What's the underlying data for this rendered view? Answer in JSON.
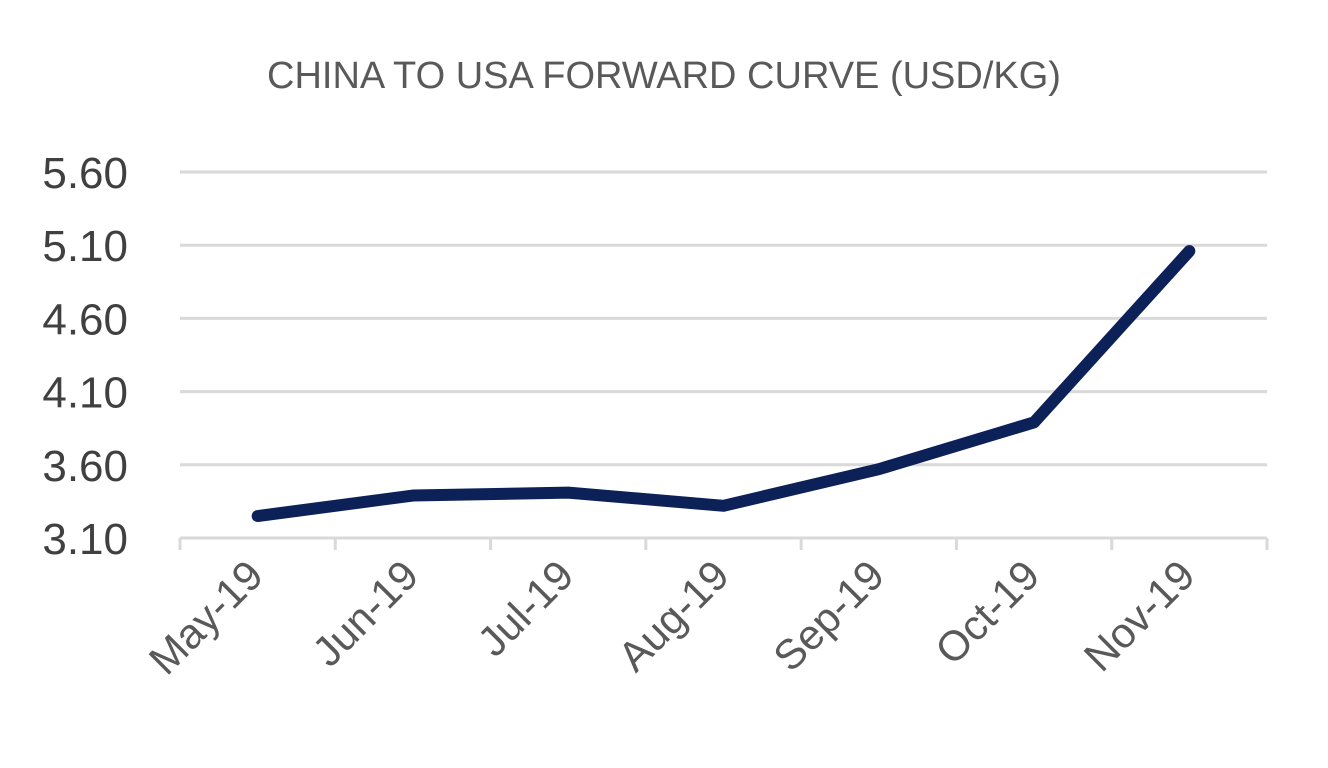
{
  "chart_data": {
    "type": "line",
    "title": "CHINA TO USA FORWARD CURVE (USD/KG)",
    "xlabel": "",
    "ylabel": "",
    "categories": [
      "May-19",
      "Jun-19",
      "Jul-19",
      "Aug-19",
      "Sep-19",
      "Oct-19",
      "Nov-19"
    ],
    "series": [
      {
        "values": [
          3.25,
          3.39,
          3.41,
          3.32,
          3.57,
          3.89,
          5.06
        ],
        "color": "#0c2158"
      }
    ],
    "ylim": [
      3.1,
      5.6
    ],
    "yticks": [
      "3.10",
      "3.60",
      "4.10",
      "4.60",
      "5.10",
      "5.60"
    ],
    "grid": true,
    "legend": "none"
  }
}
